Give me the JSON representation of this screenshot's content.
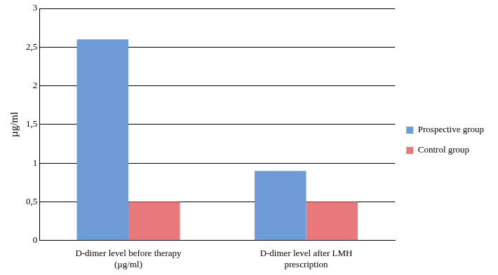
{
  "chart_data": {
    "type": "bar",
    "y_label": "µg/ml",
    "categories": [
      "D-dimer level before therapy (µg/ml)",
      "D-dimer level after LMH prescription"
    ],
    "series": [
      {
        "name": "Prospective group",
        "color": "#6f9bd6",
        "values": [
          2.6,
          0.9
        ]
      },
      {
        "name": "Control group",
        "color": "#e8787a",
        "values": [
          0.5,
          0.5
        ]
      }
    ],
    "ylim": [
      0,
      3
    ],
    "yticks": [
      0,
      {
        "value": 0.5,
        "label": "0,5"
      },
      1,
      {
        "value": 1.5,
        "label": "1,5"
      },
      2,
      {
        "value": 2.5,
        "label": "2,5"
      },
      3
    ],
    "grid": true,
    "legend": "right"
  }
}
